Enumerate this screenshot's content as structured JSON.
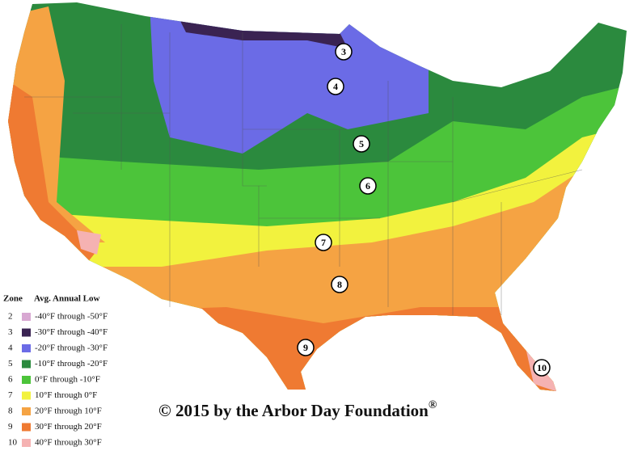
{
  "legend": {
    "header_zone": "Zone",
    "header_low": "Avg. Annual Low",
    "rows": [
      {
        "zone": "2",
        "label": "-40°F through -50°F",
        "color": "#d8a8d2"
      },
      {
        "zone": "3",
        "label": "-30°F through -40°F",
        "color": "#3a2352"
      },
      {
        "zone": "4",
        "label": "-20°F through -30°F",
        "color": "#6b6be6"
      },
      {
        "zone": "5",
        "label": "-10°F through -20°F",
        "color": "#2b8a3e"
      },
      {
        "zone": "6",
        "label": "0°F through -10°F",
        "color": "#4cc43a"
      },
      {
        "zone": "7",
        "label": "10°F through 0°F",
        "color": "#f2f23e"
      },
      {
        "zone": "8",
        "label": "20°F through 10°F",
        "color": "#f5a343"
      },
      {
        "zone": "9",
        "label": "30°F through 20°F",
        "color": "#ef7a32"
      },
      {
        "zone": "10",
        "label": "40°F through 30°F",
        "color": "#f5b2b2"
      }
    ]
  },
  "copyright": "© 2015 by the Arbor Day Foundation",
  "copyright_mark": "®",
  "map_labels": [
    "3",
    "4",
    "5",
    "6",
    "7",
    "8",
    "9",
    "10"
  ]
}
